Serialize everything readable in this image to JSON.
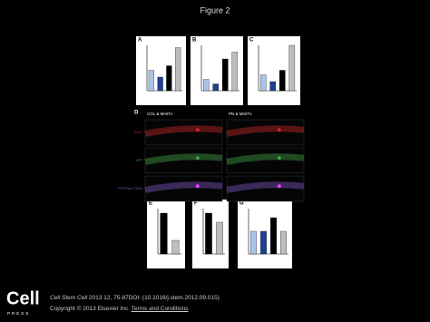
{
  "header": {
    "title": "Figure 2"
  },
  "figure": {
    "chart_panels": [
      {
        "label": "A",
        "values": [
          0.45,
          0.3,
          0.55,
          0.95
        ],
        "colors": [
          "#a9c4e8",
          "#1f3f8f",
          "#000000",
          "#bdbdbd"
        ]
      },
      {
        "label": "B",
        "values": [
          0.25,
          0.15,
          0.7,
          0.85
        ],
        "colors": [
          "#a9c4e8",
          "#1f3f8f",
          "#000000",
          "#bdbdbd"
        ]
      },
      {
        "label": "C",
        "values": [
          0.35,
          0.2,
          0.45,
          1.0
        ],
        "colors": [
          "#a9c4e8",
          "#1f3f8f",
          "#000000",
          "#bdbdbd"
        ]
      },
      {
        "label": "E",
        "values": [
          0.9,
          0.3
        ],
        "colors": [
          "#000000",
          "#bdbdbd"
        ]
      },
      {
        "label": "F",
        "values": [
          0.9,
          0.7
        ],
        "colors": [
          "#000000",
          "#bdbdbd"
        ]
      },
      {
        "label": "G",
        "values": [
          0.5,
          0.5,
          0.8,
          0.5
        ],
        "colors": [
          "#a9c4e8",
          "#1f3f8f",
          "#000000",
          "#bdbdbd"
        ]
      }
    ],
    "micro_panel": {
      "label": "D",
      "columns": [
        "COL & MmtTx",
        "PN & MmtTx"
      ],
      "rows": [
        "Pax7",
        "YFP",
        "YFP Pax7 DNA"
      ]
    }
  },
  "footer": {
    "logo": "Cell",
    "logo_sub": "PRESS",
    "journal": "Cell Stem Cell",
    "citation": "2013 12, 75-87DOI: (10.1016/j.stem.2012.09.015)",
    "copyright": "Copyright © 2013 Elsevier Inc.",
    "link": "Terms and Conditions"
  }
}
